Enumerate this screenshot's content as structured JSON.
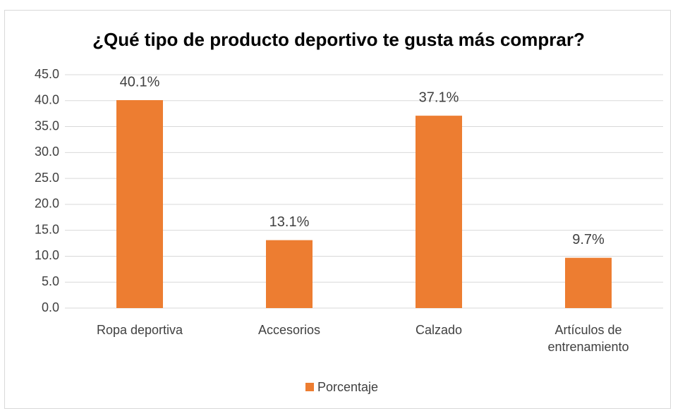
{
  "chart_data": {
    "type": "bar",
    "title": "¿Qué tipo de producto deportivo te gusta más comprar?",
    "categories": [
      "Ropa deportiva",
      "Accesorios",
      "Calzado",
      "Artículos de entrenamiento"
    ],
    "series": [
      {
        "name": "Porcentaje",
        "color": "#ed7d31",
        "values": [
          40.1,
          13.1,
          37.1,
          9.7
        ],
        "value_labels": [
          "40.1%",
          "13.1%",
          "37.1%",
          "9.7%"
        ]
      }
    ],
    "ylim": [
      0,
      45
    ],
    "yticks": [
      {
        "value": 0,
        "label": "0.0"
      },
      {
        "value": 5,
        "label": "5.0"
      },
      {
        "value": 10,
        "label": "10.0"
      },
      {
        "value": 15,
        "label": "15.0"
      },
      {
        "value": 20,
        "label": "20.0"
      },
      {
        "value": 25,
        "label": "25.0"
      },
      {
        "value": 30,
        "label": "30.0"
      },
      {
        "value": 35,
        "label": "35.0"
      },
      {
        "value": 40,
        "label": "40.0"
      },
      {
        "value": 45,
        "label": "45.0"
      }
    ],
    "grid": true,
    "legend": "bottom"
  }
}
